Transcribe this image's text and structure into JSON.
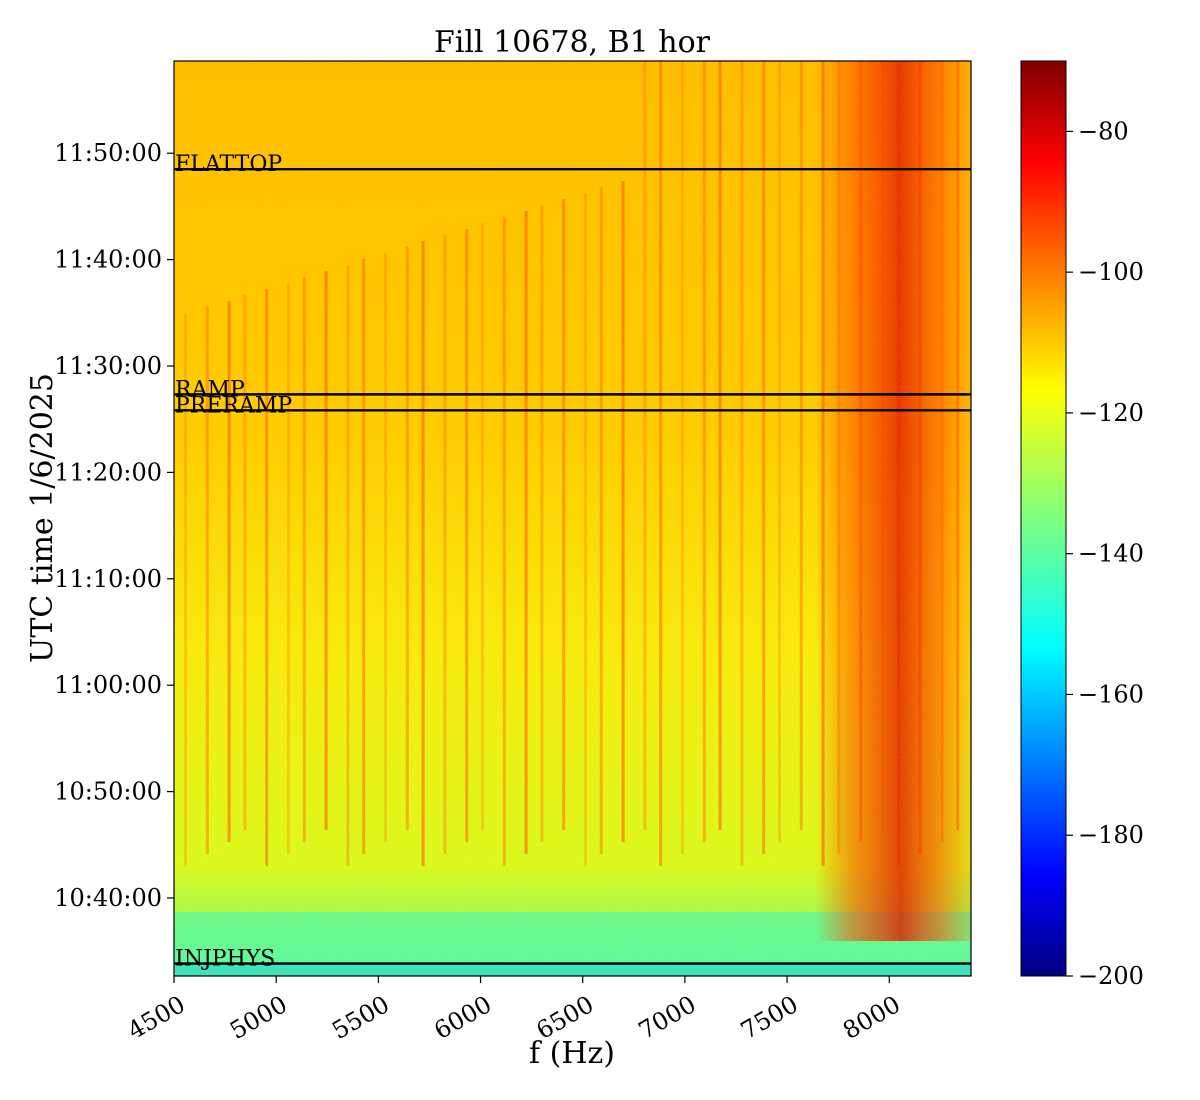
{
  "chart_data": {
    "type": "heatmap",
    "title": "Fill 10678, B1 hor",
    "xlabel": "f (Hz)",
    "ylabel": "UTC time 1/6/2025",
    "x_range": [
      4500,
      8400
    ],
    "x_ticks": [
      4500,
      5000,
      5500,
      6000,
      6500,
      7000,
      7500,
      8000
    ],
    "y_range": [
      "10:32:40",
      "11:58:40"
    ],
    "y_ticks": [
      "10:40:00",
      "10:50:00",
      "11:00:00",
      "11:10:00",
      "11:20:00",
      "11:30:00",
      "11:40:00",
      "11:50:00"
    ],
    "colorbar": {
      "colormap": "jet",
      "range": [
        -200,
        -70
      ],
      "ticks": [
        -80,
        -100,
        -120,
        -140,
        -160,
        -180,
        -200
      ]
    },
    "events": [
      {
        "label": "FLATTOP",
        "time": "11:48:30"
      },
      {
        "label": "RAMP",
        "time": "11:27:20"
      },
      {
        "label": "PRERAMP",
        "time": "11:25:50"
      },
      {
        "label": "INJPHYS",
        "time": "10:33:50"
      }
    ],
    "line_color": "#000000"
  }
}
